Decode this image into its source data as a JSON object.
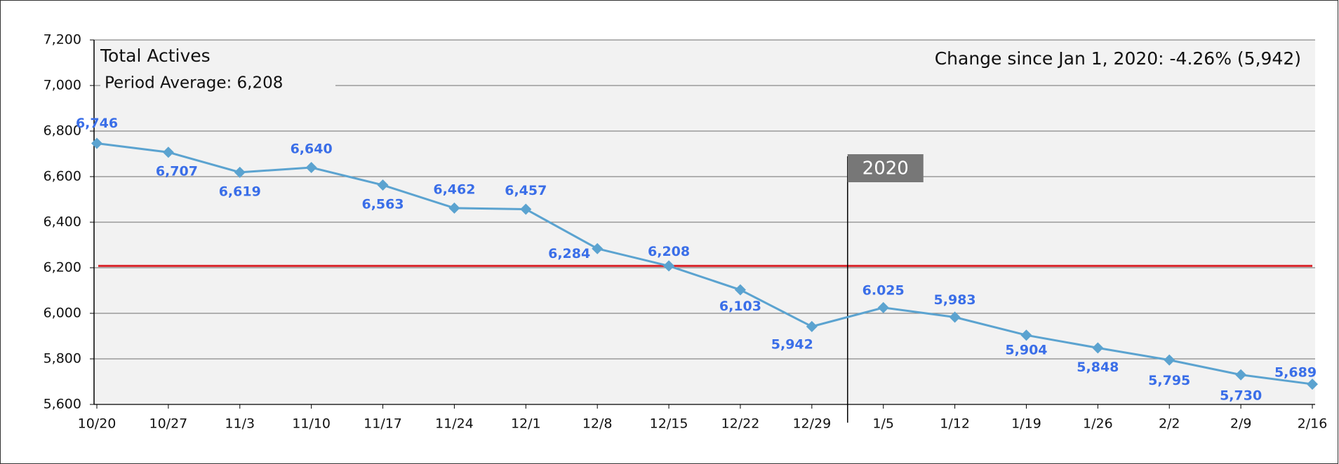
{
  "chart_data": {
    "type": "line",
    "title": "Total Actives",
    "annotation": "Change since Jan 1, 2020: -4.26% (5,942)",
    "reference_line": {
      "label": "Period Average: 6,208",
      "value": 6208,
      "color": "#d9262c"
    },
    "marker": {
      "label": "2020"
    },
    "categories": [
      "10/20",
      "10/27",
      "11/3",
      "11/10",
      "11/17",
      "11/24",
      "12/1",
      "12/8",
      "12/15",
      "12/22",
      "12/29",
      "1/5",
      "1/12",
      "1/19",
      "1/26",
      "2/2",
      "2/9",
      "2/16"
    ],
    "series": [
      {
        "color": "#5ba3d0",
        "label_color": "#3a6ee8",
        "values": [
          6746,
          6707,
          6619,
          6640,
          6563,
          6462,
          6457,
          6284,
          6208,
          6103,
          5942,
          6025,
          5983,
          5904,
          5848,
          5795,
          5730,
          5689
        ],
        "value_labels": [
          "6,746",
          "6,707",
          "6,619",
          "6,640",
          "6,563",
          "6,462",
          "6,457",
          "6,284",
          "6,208",
          "6,103",
          "5,942",
          "6.025",
          "5,983",
          "5,904",
          "5,848",
          "5,795",
          "5,730",
          "5,689"
        ]
      }
    ],
    "ylim": [
      5600,
      7200
    ],
    "yticks": [
      {
        "value": 5600,
        "label": "5,600"
      },
      {
        "value": 5800,
        "label": "5,800"
      },
      {
        "value": 6000,
        "label": "6,000"
      },
      {
        "value": 6200,
        "label": "6,200"
      },
      {
        "value": 6400,
        "label": "6,400"
      },
      {
        "value": 6600,
        "label": "6,600"
      },
      {
        "value": 6800,
        "label": "6,800"
      },
      {
        "value": 7000,
        "label": "7,000"
      },
      {
        "value": 7200,
        "label": "7,200"
      }
    ],
    "grid": true
  }
}
